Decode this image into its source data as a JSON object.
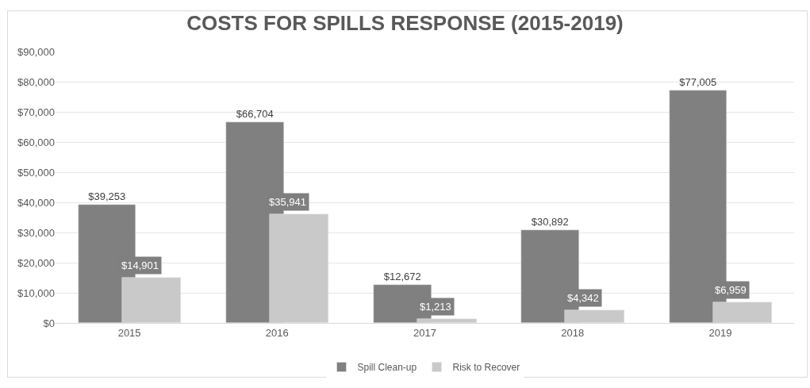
{
  "chart_data": {
    "type": "bar",
    "title": "COSTS FOR SPILLS RESPONSE (2015-2019)",
    "categories": [
      "2015",
      "2016",
      "2017",
      "2018",
      "2019"
    ],
    "series": [
      {
        "name": "Spill Clean-up",
        "color": "#808080",
        "values": [
          39253,
          66704,
          12672,
          30892,
          77005
        ],
        "value_labels": [
          "$39,253",
          "$66,704",
          "$12,672",
          "$30,892",
          "$77,005"
        ]
      },
      {
        "name": "Risk to Recover",
        "color": "#c9c9c9",
        "values": [
          14901,
          35941,
          1213,
          4342,
          6959
        ],
        "value_labels": [
          "$14,901",
          "$35,941",
          "$1,213",
          "$4,342",
          "$6,959"
        ]
      }
    ],
    "ylim": [
      0,
      90000
    ],
    "yticks": [
      {
        "value": 0,
        "label": "$0"
      },
      {
        "value": 10000,
        "label": "$10,000"
      },
      {
        "value": 20000,
        "label": "$20,000"
      },
      {
        "value": 30000,
        "label": "$30,000"
      },
      {
        "value": 40000,
        "label": "$40,000"
      },
      {
        "value": 50000,
        "label": "$50,000"
      },
      {
        "value": 60000,
        "label": "$60,000"
      },
      {
        "value": 70000,
        "label": "$70,000"
      },
      {
        "value": 80000,
        "label": "$80,000"
      },
      {
        "value": 90000,
        "label": "$90,000"
      }
    ],
    "grid": "y",
    "legend": "bottom"
  }
}
